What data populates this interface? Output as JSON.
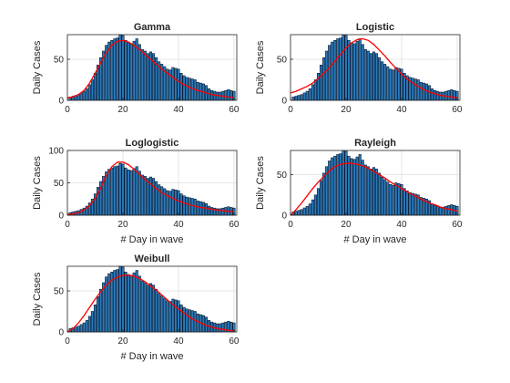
{
  "colors": {
    "bar_fill": "#2b7bba",
    "bar_edge": "#0a1a33",
    "fit_line": "#ff0000",
    "grid": "#dfdfdf",
    "axes": "#262626"
  },
  "chart_data": [
    {
      "type": "bar",
      "title": "Gamma",
      "xlabel": "",
      "ylabel": "Daily Cases",
      "xlim": [
        0,
        61
      ],
      "ylim": [
        0,
        80
      ],
      "xticks": [
        0,
        20,
        40,
        60
      ],
      "yticks": [
        0,
        50
      ],
      "grid": true,
      "x": [
        1,
        2,
        3,
        4,
        5,
        6,
        7,
        8,
        9,
        10,
        11,
        12,
        13,
        14,
        15,
        16,
        17,
        18,
        19,
        20,
        21,
        22,
        23,
        24,
        25,
        26,
        27,
        28,
        29,
        30,
        31,
        32,
        33,
        34,
        35,
        36,
        37,
        38,
        39,
        40,
        41,
        42,
        43,
        44,
        45,
        46,
        47,
        48,
        49,
        50,
        51,
        52,
        53,
        54,
        55,
        56,
        57,
        58,
        59,
        60
      ],
      "values": [
        4,
        5,
        6,
        7,
        9,
        11,
        14,
        19,
        25,
        33,
        43,
        52,
        60,
        67,
        71,
        73,
        75,
        76,
        80,
        79,
        73,
        70,
        69,
        72,
        75,
        68,
        62,
        60,
        57,
        59,
        57,
        52,
        47,
        44,
        41,
        38,
        37,
        40,
        39,
        38,
        33,
        30,
        28,
        27,
        26,
        25,
        22,
        21,
        20,
        18,
        14,
        12,
        11,
        10,
        10,
        11,
        12,
        13,
        12,
        11
      ],
      "fit_x": [
        0,
        2,
        4,
        6,
        8,
        10,
        12,
        14,
        16,
        18,
        20,
        22,
        24,
        26,
        28,
        30,
        32,
        34,
        36,
        38,
        40,
        42,
        44,
        46,
        48,
        50,
        52,
        54,
        56,
        58,
        60
      ],
      "fit_y": [
        3,
        4,
        7,
        12,
        21,
        33,
        46,
        58,
        67,
        72,
        73,
        71,
        67,
        62,
        56,
        50,
        44,
        38,
        33,
        28,
        23,
        19,
        16,
        13,
        11,
        9,
        7,
        6,
        5,
        4,
        3
      ]
    },
    {
      "type": "bar",
      "title": "Logistic",
      "xlabel": "",
      "ylabel": "Daily Cases",
      "xlim": [
        0,
        61
      ],
      "ylim": [
        0,
        80
      ],
      "xticks": [
        0,
        20,
        40,
        60
      ],
      "yticks": [
        0,
        50
      ],
      "grid": true,
      "x": [
        1,
        2,
        3,
        4,
        5,
        6,
        7,
        8,
        9,
        10,
        11,
        12,
        13,
        14,
        15,
        16,
        17,
        18,
        19,
        20,
        21,
        22,
        23,
        24,
        25,
        26,
        27,
        28,
        29,
        30,
        31,
        32,
        33,
        34,
        35,
        36,
        37,
        38,
        39,
        40,
        41,
        42,
        43,
        44,
        45,
        46,
        47,
        48,
        49,
        50,
        51,
        52,
        53,
        54,
        55,
        56,
        57,
        58,
        59,
        60
      ],
      "values": [
        4,
        5,
        6,
        7,
        9,
        11,
        14,
        19,
        25,
        33,
        43,
        52,
        60,
        67,
        71,
        73,
        75,
        76,
        80,
        79,
        73,
        70,
        69,
        72,
        75,
        68,
        62,
        60,
        57,
        59,
        57,
        52,
        47,
        44,
        41,
        38,
        37,
        40,
        39,
        38,
        33,
        30,
        28,
        27,
        26,
        25,
        22,
        21,
        20,
        18,
        14,
        12,
        11,
        10,
        10,
        11,
        12,
        13,
        12,
        11
      ],
      "fit_x": [
        0,
        2,
        4,
        6,
        8,
        10,
        12,
        14,
        16,
        18,
        20,
        22,
        24,
        26,
        28,
        30,
        32,
        34,
        36,
        38,
        40,
        42,
        44,
        46,
        48,
        50,
        52,
        54,
        56,
        58,
        60
      ],
      "fit_y": [
        9,
        11,
        14,
        17,
        21,
        27,
        33,
        40,
        48,
        56,
        64,
        70,
        74,
        75,
        73,
        68,
        61,
        54,
        46,
        39,
        32,
        26,
        21,
        17,
        13,
        10,
        8,
        6,
        5,
        4,
        3
      ]
    },
    {
      "type": "bar",
      "title": "Loglogistic",
      "xlabel": "# Day in wave",
      "ylabel": "Daily Cases",
      "xlim": [
        0,
        61
      ],
      "ylim": [
        0,
        100
      ],
      "xticks": [
        0,
        20,
        40,
        60
      ],
      "yticks": [
        0,
        50,
        100
      ],
      "grid": true,
      "x": [
        1,
        2,
        3,
        4,
        5,
        6,
        7,
        8,
        9,
        10,
        11,
        12,
        13,
        14,
        15,
        16,
        17,
        18,
        19,
        20,
        21,
        22,
        23,
        24,
        25,
        26,
        27,
        28,
        29,
        30,
        31,
        32,
        33,
        34,
        35,
        36,
        37,
        38,
        39,
        40,
        41,
        42,
        43,
        44,
        45,
        46,
        47,
        48,
        49,
        50,
        51,
        52,
        53,
        54,
        55,
        56,
        57,
        58,
        59,
        60
      ],
      "values": [
        4,
        5,
        6,
        7,
        9,
        11,
        14,
        19,
        25,
        33,
        43,
        52,
        60,
        67,
        71,
        73,
        75,
        76,
        80,
        79,
        73,
        70,
        69,
        72,
        75,
        68,
        62,
        60,
        57,
        59,
        57,
        52,
        47,
        44,
        41,
        38,
        37,
        40,
        39,
        38,
        33,
        30,
        28,
        27,
        26,
        25,
        22,
        21,
        20,
        18,
        14,
        12,
        11,
        10,
        10,
        11,
        12,
        13,
        12,
        11
      ],
      "fit_x": [
        0,
        2,
        4,
        6,
        8,
        10,
        12,
        14,
        16,
        18,
        20,
        22,
        24,
        26,
        28,
        30,
        32,
        34,
        36,
        38,
        40,
        42,
        44,
        46,
        48,
        50,
        52,
        54,
        56,
        58,
        60
      ],
      "fit_y": [
        1,
        2,
        4,
        8,
        15,
        26,
        42,
        61,
        75,
        82,
        82,
        78,
        71,
        63,
        55,
        48,
        41,
        35,
        30,
        26,
        22,
        19,
        16,
        14,
        12,
        11,
        9,
        8,
        7,
        6,
        6
      ]
    },
    {
      "type": "bar",
      "title": "Rayleigh",
      "xlabel": "# Day in wave",
      "ylabel": "Daily Cases",
      "xlim": [
        0,
        61
      ],
      "ylim": [
        0,
        80
      ],
      "xticks": [
        0,
        20,
        40,
        60
      ],
      "yticks": [
        0,
        50
      ],
      "grid": true,
      "x": [
        1,
        2,
        3,
        4,
        5,
        6,
        7,
        8,
        9,
        10,
        11,
        12,
        13,
        14,
        15,
        16,
        17,
        18,
        19,
        20,
        21,
        22,
        23,
        24,
        25,
        26,
        27,
        28,
        29,
        30,
        31,
        32,
        33,
        34,
        35,
        36,
        37,
        38,
        39,
        40,
        41,
        42,
        43,
        44,
        45,
        46,
        47,
        48,
        49,
        50,
        51,
        52,
        53,
        54,
        55,
        56,
        57,
        58,
        59,
        60
      ],
      "values": [
        4,
        5,
        6,
        7,
        9,
        11,
        14,
        19,
        25,
        33,
        43,
        52,
        60,
        67,
        71,
        73,
        75,
        76,
        80,
        79,
        73,
        70,
        69,
        72,
        75,
        68,
        62,
        60,
        57,
        59,
        57,
        52,
        47,
        44,
        41,
        38,
        37,
        40,
        39,
        38,
        33,
        30,
        28,
        27,
        26,
        25,
        22,
        21,
        20,
        18,
        14,
        12,
        11,
        10,
        10,
        11,
        12,
        13,
        12,
        11
      ],
      "fit_x": [
        0,
        2,
        4,
        6,
        8,
        10,
        12,
        14,
        16,
        18,
        20,
        22,
        24,
        26,
        28,
        30,
        32,
        34,
        36,
        38,
        40,
        42,
        44,
        46,
        48,
        50,
        52,
        54,
        56,
        58,
        60
      ],
      "fit_y": [
        0,
        7,
        15,
        24,
        33,
        41,
        48,
        55,
        60,
        63,
        64,
        64,
        63,
        61,
        58,
        54,
        50,
        46,
        41,
        37,
        33,
        29,
        25,
        22,
        18,
        15,
        13,
        10,
        8,
        7,
        5
      ]
    },
    {
      "type": "bar",
      "title": "Weibull",
      "xlabel": "# Day in wave",
      "ylabel": "Daily Cases",
      "xlim": [
        0,
        61
      ],
      "ylim": [
        0,
        80
      ],
      "xticks": [
        0,
        20,
        40,
        60
      ],
      "yticks": [
        0,
        50
      ],
      "grid": true,
      "x": [
        1,
        2,
        3,
        4,
        5,
        6,
        7,
        8,
        9,
        10,
        11,
        12,
        13,
        14,
        15,
        16,
        17,
        18,
        19,
        20,
        21,
        22,
        23,
        24,
        25,
        26,
        27,
        28,
        29,
        30,
        31,
        32,
        33,
        34,
        35,
        36,
        37,
        38,
        39,
        40,
        41,
        42,
        43,
        44,
        45,
        46,
        47,
        48,
        49,
        50,
        51,
        52,
        53,
        54,
        55,
        56,
        57,
        58,
        59,
        60
      ],
      "values": [
        4,
        5,
        6,
        7,
        9,
        11,
        14,
        19,
        25,
        33,
        43,
        52,
        60,
        67,
        71,
        73,
        75,
        76,
        80,
        79,
        73,
        70,
        69,
        72,
        75,
        68,
        62,
        60,
        57,
        59,
        57,
        52,
        47,
        44,
        41,
        38,
        37,
        40,
        39,
        38,
        33,
        30,
        28,
        27,
        26,
        25,
        22,
        21,
        20,
        18,
        14,
        12,
        11,
        10,
        10,
        11,
        12,
        13,
        12,
        11
      ],
      "fit_x": [
        0,
        2,
        4,
        6,
        8,
        10,
        12,
        14,
        16,
        18,
        20,
        22,
        24,
        26,
        28,
        30,
        32,
        34,
        36,
        38,
        40,
        42,
        44,
        46,
        48,
        50,
        52,
        54,
        56,
        58,
        60
      ],
      "fit_y": [
        0,
        4,
        11,
        20,
        30,
        40,
        49,
        57,
        63,
        67,
        69,
        69,
        68,
        65,
        61,
        56,
        51,
        45,
        39,
        33,
        28,
        23,
        18,
        14,
        11,
        8,
        6,
        4,
        3,
        2,
        1
      ]
    }
  ]
}
